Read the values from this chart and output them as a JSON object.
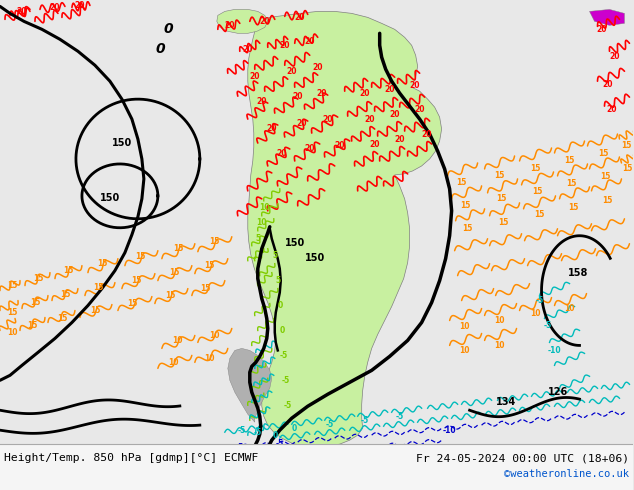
{
  "title_left": "Height/Temp. 850 hPa [gdmp][°C] ECMWF",
  "title_right": "Fr 24-05-2024 00:00 UTC (18+06)",
  "watermark": "©weatheronline.co.uk",
  "bg_color": "#e8e8e8",
  "land_color": "#c8f0a0",
  "ocean_color": "#e8e8e8",
  "fig_width": 6.34,
  "fig_height": 4.9,
  "dpi": 100,
  "bottom_bar_color": "#f5f5f5",
  "red": "#ff0000",
  "orange": "#ff8c00",
  "green_c": "#80cc00",
  "cyan_c": "#00bbbb",
  "blue_c": "#0000cc",
  "black": "#000000",
  "magenta": "#cc00cc",
  "gray_border": "#808080"
}
